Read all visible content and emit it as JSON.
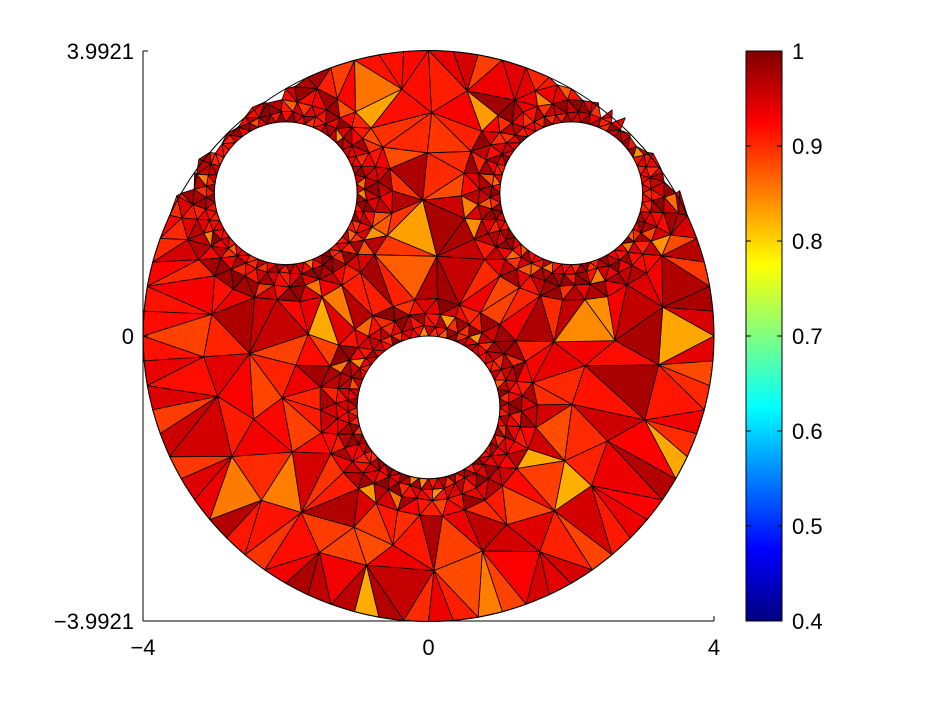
{
  "chart_data": {
    "type": "heatmap",
    "subtype": "triangular-mesh-on-disk-with-three-circular-holes",
    "title": "",
    "xlabel": "",
    "ylabel": "",
    "xlim": [
      -4,
      4
    ],
    "ylim": [
      -3.9921,
      3.9921
    ],
    "x_ticks": [
      "−4",
      "0",
      "4"
    ],
    "y_ticks": [
      "3.9921",
      "0",
      "−3.9921"
    ],
    "x_tick_values": [
      -4,
      0,
      4
    ],
    "y_tick_values": [
      3.9921,
      0,
      -3.9921
    ],
    "grid": false,
    "domain": {
      "outer_circle": {
        "center": [
          0,
          0
        ],
        "radius": 4
      },
      "holes": [
        {
          "center": [
            -2,
            2
          ],
          "radius": 1
        },
        {
          "center": [
            2,
            2
          ],
          "radius": 1
        },
        {
          "center": [
            0,
            -1
          ],
          "radius": 1
        }
      ]
    },
    "value_range": [
      0.4,
      1
    ],
    "typical_value": 0.93,
    "min_visible_value": 0.82,
    "colormap": "jet",
    "colorbar": {
      "placement": "right",
      "min": 0.4,
      "max": 1,
      "ticks": [
        "1",
        "0.9",
        "0.8",
        "0.7",
        "0.6",
        "0.5",
        "0.4"
      ],
      "tick_values": [
        1,
        0.9,
        0.8,
        0.7,
        0.6,
        0.5,
        0.4
      ]
    },
    "colors": {
      "mesh_edge": "#000000",
      "jet_low": "#000080",
      "jet_mid": "#80ff80",
      "jet_high": "#800000"
    }
  }
}
